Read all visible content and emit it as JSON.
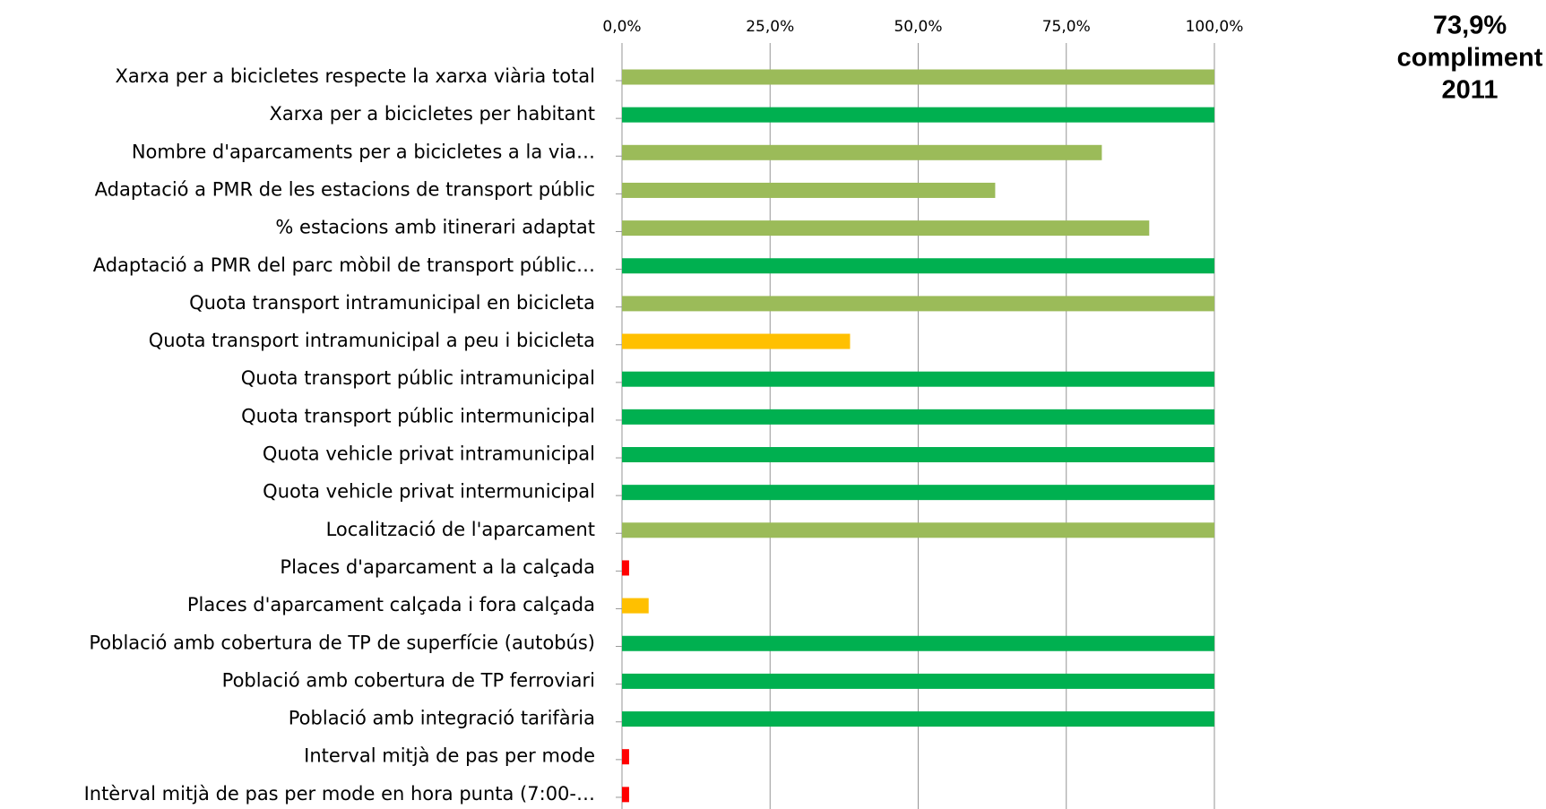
{
  "chart_data": {
    "type": "bar",
    "orientation": "horizontal",
    "annotation": [
      "73,9%",
      "compliment",
      "2011"
    ],
    "categories": [
      "Xarxa per a bicicletes respecte la xarxa viària total",
      "Xarxa per a bicicletes per habitant",
      "Nombre d'aparcaments per a bicicletes a la via…",
      "Adaptació a PMR de les estacions de transport públic",
      "% estacions amb itinerari adaptat",
      "Adaptació a PMR del parc mòbil de transport públic…",
      "Quota transport intramunicipal en bicicleta",
      "Quota transport intramunicipal a peu i bicicleta",
      "Quota transport públic intramunicipal",
      "Quota transport públic intermunicipal",
      "Quota vehicle privat intramunicipal",
      "Quota vehicle privat intermunicipal",
      "Localització de l'aparcament",
      "Places d'aparcament a la calçada",
      "Places d'aparcament calçada i fora calçada",
      "Població amb cobertura de TP de superfície (autobús)",
      "Població amb cobertura de TP ferroviari",
      "Població amb integració tarifària",
      "Interval mitjà de pas per mode",
      "Intèrval mitjà de pas per mode en hora punta (7:00-…"
    ],
    "values": [
      100,
      100,
      81,
      63,
      89,
      100,
      100,
      38.5,
      100,
      100,
      100,
      100,
      100,
      1.2,
      4.5,
      100,
      100,
      100,
      1.2,
      1.2
    ],
    "colors": [
      "#9bbb59",
      "#00b050",
      "#9bbb59",
      "#9bbb59",
      "#9bbb59",
      "#00b050",
      "#9bbb59",
      "#ffc000",
      "#00b050",
      "#00b050",
      "#00b050",
      "#00b050",
      "#9bbb59",
      "#ff0000",
      "#ffc000",
      "#00b050",
      "#00b050",
      "#00b050",
      "#ff0000",
      "#ff0000"
    ],
    "xlim": [
      0,
      100
    ],
    "xticks": [
      {
        "value": 0,
        "label": "0,0%"
      },
      {
        "value": 25,
        "label": "25,0%"
      },
      {
        "value": 50,
        "label": "50,0%"
      },
      {
        "value": 75,
        "label": "75,0%"
      },
      {
        "value": 100,
        "label": "100,0%"
      }
    ],
    "grid": true
  }
}
